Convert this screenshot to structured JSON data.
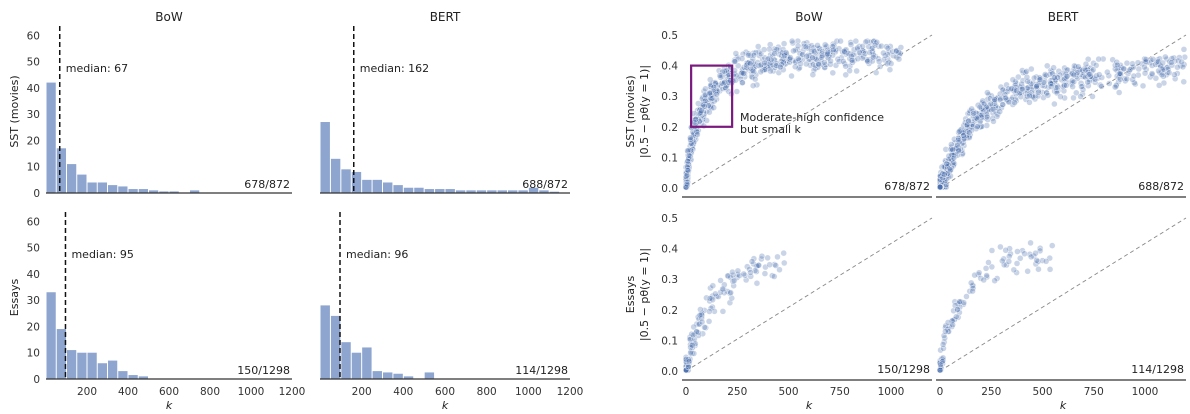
{
  "chart_data": [
    {
      "type": "bar",
      "column_title": "BoW",
      "row_label": "SST (movies)",
      "xlabel": "k",
      "bin_width": 50,
      "bin_starts": [
        0,
        50,
        100,
        150,
        200,
        250,
        300,
        350,
        400,
        450,
        500,
        550,
        600,
        650,
        700
      ],
      "values": [
        42,
        17,
        11,
        7,
        4,
        4,
        3,
        2.5,
        1.5,
        1.5,
        1,
        0.6,
        0.6,
        0,
        1
      ],
      "xlim": [
        0,
        1200
      ],
      "ylim": [
        0,
        62
      ],
      "xticks": [],
      "yticks": [
        0,
        10,
        20,
        30,
        40,
        50,
        60
      ],
      "median": 67,
      "median_label": "median: 67",
      "count_label": "678/872"
    },
    {
      "type": "bar",
      "column_title": "BERT",
      "row_label": "",
      "xlabel": "k",
      "bin_width": 50,
      "bin_starts": [
        0,
        50,
        100,
        150,
        200,
        250,
        300,
        350,
        400,
        450,
        500,
        550,
        600,
        650,
        700,
        750,
        800,
        850,
        900,
        950,
        1000,
        1050,
        1100
      ],
      "values": [
        27,
        13,
        9,
        8,
        5,
        5,
        4,
        3,
        2,
        2,
        1.5,
        1.5,
        1.5,
        1,
        1,
        1,
        1,
        1,
        1,
        1,
        2,
        1,
        0.5
      ],
      "xlim": [
        0,
        1200
      ],
      "ylim": [
        0,
        62
      ],
      "xticks": [],
      "yticks": [],
      "median": 162,
      "median_label": "median: 162",
      "count_label": "688/872"
    },
    {
      "type": "bar",
      "column_title": "",
      "row_label": "Essays",
      "xlabel": "k",
      "bin_width": 50,
      "bin_starts": [
        0,
        50,
        100,
        150,
        200,
        250,
        300,
        350,
        400,
        450
      ],
      "values": [
        33,
        19,
        11,
        10,
        10,
        6,
        7,
        3,
        1.5,
        1
      ],
      "xlim": [
        0,
        1200
      ],
      "ylim": [
        0,
        62
      ],
      "xticks": [
        200,
        400,
        600,
        800,
        1000,
        1200
      ],
      "yticks": [
        0,
        10,
        20,
        30,
        40,
        50,
        60
      ],
      "median": 95,
      "median_label": "median: 95",
      "count_label": "150/1298"
    },
    {
      "type": "bar",
      "column_title": "",
      "row_label": "",
      "xlabel": "k",
      "bin_width": 50,
      "bin_starts": [
        0,
        50,
        100,
        150,
        200,
        250,
        300,
        350,
        400,
        450,
        500
      ],
      "values": [
        28,
        24,
        14,
        10,
        12,
        3,
        2.5,
        2,
        1,
        0,
        2.5
      ],
      "xlim": [
        0,
        1200
      ],
      "ylim": [
        0,
        62
      ],
      "xticks": [
        200,
        400,
        600,
        800,
        1000,
        1200
      ],
      "yticks": [],
      "median": 96,
      "median_label": "median: 96",
      "count_label": "114/1298"
    },
    {
      "type": "scatter",
      "column_title": "BoW",
      "row_label": "SST (movies)",
      "ylabel": "|0.5 − pθ(y = 1)|",
      "xlabel": "k",
      "xlim": [
        0,
        1200
      ],
      "ylim": [
        0,
        0.5
      ],
      "xticks": [],
      "yticks": [
        0.0,
        0.1,
        0.2,
        0.3,
        0.4,
        0.5
      ],
      "n_points": 678,
      "k_max": 1050,
      "curve": [
        [
          0,
          0
        ],
        [
          20,
          0.12
        ],
        [
          40,
          0.18
        ],
        [
          70,
          0.24
        ],
        [
          100,
          0.28
        ],
        [
          150,
          0.32
        ],
        [
          200,
          0.36
        ],
        [
          300,
          0.4
        ],
        [
          400,
          0.42
        ],
        [
          600,
          0.43
        ],
        [
          900,
          0.44
        ],
        [
          1200,
          0.45
        ]
      ],
      "count_label": "678/872",
      "highlight_box": {
        "k": [
          25,
          225
        ],
        "y": [
          0.2,
          0.4
        ]
      },
      "annotation": [
        "Moderate-high confidence",
        "but small k"
      ]
    },
    {
      "type": "scatter",
      "column_title": "BERT",
      "row_label": "",
      "xlabel": "k",
      "xlim": [
        0,
        1200
      ],
      "ylim": [
        0,
        0.5
      ],
      "xticks": [],
      "yticks": [],
      "n_points": 688,
      "k_max": 1200,
      "curve": [
        [
          0,
          0
        ],
        [
          30,
          0.05
        ],
        [
          60,
          0.1
        ],
        [
          100,
          0.15
        ],
        [
          150,
          0.2
        ],
        [
          200,
          0.24
        ],
        [
          300,
          0.29
        ],
        [
          400,
          0.32
        ],
        [
          500,
          0.34
        ],
        [
          700,
          0.36
        ],
        [
          900,
          0.38
        ],
        [
          1200,
          0.4
        ]
      ],
      "count_label": "688/872"
    },
    {
      "type": "scatter",
      "column_title": "",
      "row_label": "Essays",
      "ylabel": "|0.5 − pθ(y = 1)|",
      "xlabel": "k",
      "xlim": [
        0,
        1200
      ],
      "ylim": [
        0,
        0.5
      ],
      "xticks": [
        0,
        250,
        500,
        750,
        1000
      ],
      "yticks": [
        0.0,
        0.1,
        0.2,
        0.3,
        0.4,
        0.5
      ],
      "n_points": 150,
      "k_max": 480,
      "curve": [
        [
          0,
          0
        ],
        [
          20,
          0.07
        ],
        [
          50,
          0.13
        ],
        [
          100,
          0.2
        ],
        [
          150,
          0.25
        ],
        [
          200,
          0.28
        ],
        [
          250,
          0.31
        ],
        [
          300,
          0.33
        ],
        [
          400,
          0.35
        ],
        [
          500,
          0.35
        ]
      ],
      "count_label": "150/1298"
    },
    {
      "type": "scatter",
      "column_title": "",
      "row_label": "",
      "xlabel": "k",
      "xlim": [
        0,
        1200
      ],
      "ylim": [
        0,
        0.5
      ],
      "xticks": [
        0,
        250,
        500,
        750,
        1000
      ],
      "yticks": [],
      "n_points": 114,
      "k_max": 550,
      "curve": [
        [
          0,
          0
        ],
        [
          20,
          0.08
        ],
        [
          50,
          0.15
        ],
        [
          100,
          0.23
        ],
        [
          150,
          0.28
        ],
        [
          200,
          0.32
        ],
        [
          250,
          0.35
        ],
        [
          300,
          0.36
        ],
        [
          400,
          0.36
        ],
        [
          550,
          0.36
        ]
      ],
      "count_label": "114/1298"
    }
  ]
}
